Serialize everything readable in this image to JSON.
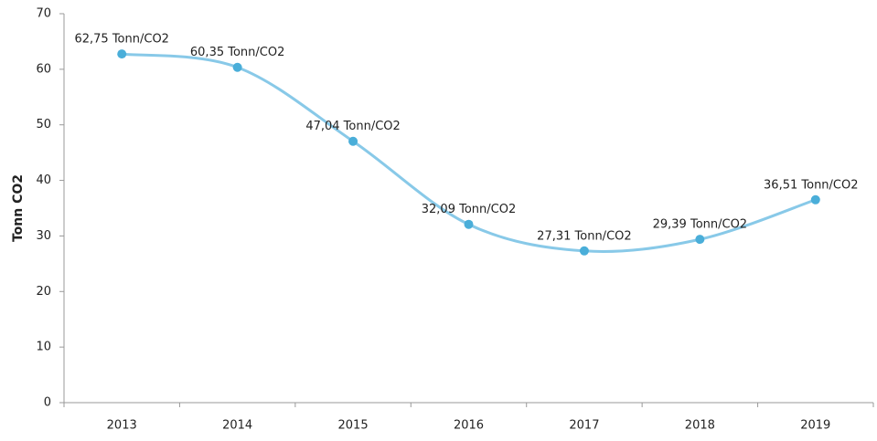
{
  "chart_data": {
    "type": "line",
    "y_label": "Tonn CO2",
    "categories": [
      "2013",
      "2014",
      "2015",
      "2016",
      "2017",
      "2018",
      "2019"
    ],
    "series": [
      {
        "color": "#88c9e8",
        "values": [
          62.75,
          60.35,
          47.04,
          32.09,
          27.31,
          29.39,
          36.51
        ],
        "value_labels": [
          "62,75 Tonn/CO2",
          "60,35 Tonn/CO2",
          "47,04 Tonn/CO2",
          "32,09 Tonn/CO2",
          "27,31 Tonn/CO2",
          "29,39 Tonn/CO2",
          "36,51 Tonn/CO2"
        ]
      }
    ],
    "marker_color": "#4aaed9",
    "ylim": [
      0,
      70
    ],
    "yticks": [
      0,
      10,
      20,
      30,
      40,
      50,
      60,
      70
    ]
  }
}
